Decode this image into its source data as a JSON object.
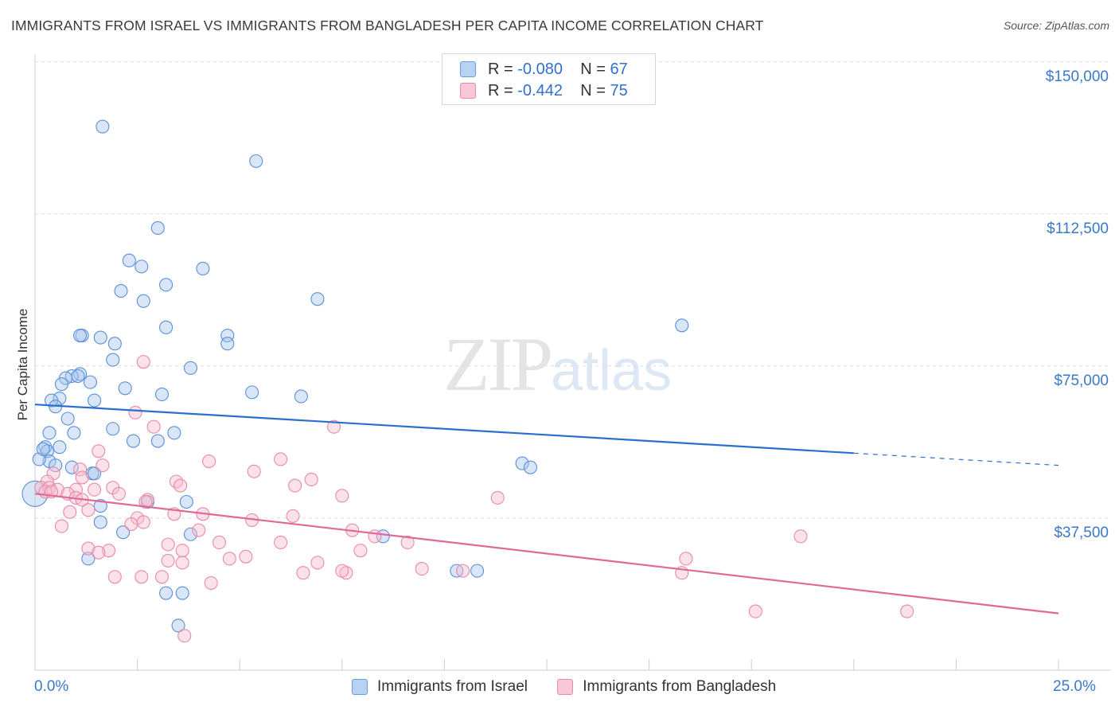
{
  "title": "IMMIGRANTS FROM ISRAEL VS IMMIGRANTS FROM BANGLADESH PER CAPITA INCOME CORRELATION CHART",
  "source": "Source: ZipAtlas.com",
  "watermark": {
    "zip": "ZIP",
    "atlas": "atlas"
  },
  "colors": {
    "israel_fill": "#a9c8f0",
    "israel_stroke": "#5b8fd6",
    "israel_line": "#2a6fce",
    "bangladesh_fill": "#f6bccf",
    "bangladesh_stroke": "#e88aa9",
    "bangladesh_line": "#e0699a",
    "tick_text": "#3a78c9"
  },
  "legend_top": [
    {
      "r_label": "R =",
      "r_value": "-0.080",
      "n_label": "N =",
      "n_value": "67"
    },
    {
      "r_label": "R =",
      "r_value": "-0.442",
      "n_label": "N =",
      "n_value": "75"
    }
  ],
  "chart_data": {
    "type": "scatter",
    "title": "IMMIGRANTS FROM ISRAEL VS IMMIGRANTS FROM BANGLADESH PER CAPITA INCOME CORRELATION CHART",
    "xlabel": "",
    "ylabel": "Per Capita Income",
    "xlim": [
      0,
      25
    ],
    "ylim": [
      0,
      155000
    ],
    "x_ticks": [
      "0.0%",
      "25.0%"
    ],
    "y_ticks": [
      {
        "value": 37500,
        "label": "$37,500"
      },
      {
        "value": 75000,
        "label": "$75,000"
      },
      {
        "value": 112500,
        "label": "$112,500"
      },
      {
        "value": 150000,
        "label": "$150,000"
      }
    ],
    "grid": true,
    "legend_position": "bottom",
    "series": [
      {
        "name": "Immigrants from Israel",
        "trend": {
          "x_start": 0,
          "y_start": 65500,
          "x_solid_end": 20,
          "y_solid_end": 53500,
          "x_end": 25,
          "y_end": 50500
        },
        "points": [
          [
            1.65,
            134000
          ],
          [
            5.4,
            125500
          ],
          [
            3.0,
            109000
          ],
          [
            2.3,
            101000
          ],
          [
            2.6,
            99500
          ],
          [
            4.1,
            99000
          ],
          [
            3.2,
            95000
          ],
          [
            2.1,
            93500
          ],
          [
            2.65,
            91000
          ],
          [
            6.9,
            91500
          ],
          [
            15.8,
            85000
          ],
          [
            3.2,
            84500
          ],
          [
            1.15,
            82500
          ],
          [
            1.1,
            82500
          ],
          [
            1.6,
            82000
          ],
          [
            4.7,
            82500
          ],
          [
            1.95,
            80500
          ],
          [
            4.7,
            80500
          ],
          [
            1.9,
            76500
          ],
          [
            3.8,
            74500
          ],
          [
            1.1,
            73000
          ],
          [
            0.9,
            72500
          ],
          [
            0.75,
            72000
          ],
          [
            1.05,
            72500
          ],
          [
            1.35,
            71000
          ],
          [
            0.65,
            70500
          ],
          [
            2.2,
            69500
          ],
          [
            5.3,
            68500
          ],
          [
            3.1,
            68000
          ],
          [
            6.5,
            67500
          ],
          [
            0.6,
            67000
          ],
          [
            0.4,
            66500
          ],
          [
            1.45,
            66500
          ],
          [
            0.5,
            65000
          ],
          [
            0.8,
            62000
          ],
          [
            1.9,
            59500
          ],
          [
            3.4,
            58500
          ],
          [
            0.95,
            58500
          ],
          [
            0.35,
            58500
          ],
          [
            2.4,
            56500
          ],
          [
            3.0,
            56500
          ],
          [
            0.25,
            55000
          ],
          [
            0.6,
            55000
          ],
          [
            0.3,
            54000
          ],
          [
            0.35,
            51500
          ],
          [
            11.9,
            51000
          ],
          [
            12.1,
            50000
          ],
          [
            0.9,
            50000
          ],
          [
            0.5,
            50500
          ],
          [
            1.4,
            48500
          ],
          [
            1.45,
            48500
          ],
          [
            2.75,
            41500
          ],
          [
            3.7,
            41500
          ],
          [
            1.6,
            40500
          ],
          [
            1.6,
            36500
          ],
          [
            0.0,
            43500
          ],
          [
            2.15,
            34000
          ],
          [
            3.8,
            33500
          ],
          [
            8.5,
            33000
          ],
          [
            1.3,
            27500
          ],
          [
            10.3,
            24500
          ],
          [
            10.8,
            24500
          ],
          [
            3.2,
            19000
          ],
          [
            3.6,
            19000
          ],
          [
            3.5,
            11000
          ],
          [
            0.1,
            52000
          ],
          [
            0.2,
            54500
          ]
        ]
      },
      {
        "name": "Immigrants from Bangladesh",
        "trend": {
          "x_start": 0,
          "y_start": 43500,
          "x_end": 25,
          "y_end": 14000
        },
        "points": [
          [
            2.65,
            76000
          ],
          [
            2.45,
            63500
          ],
          [
            7.3,
            60000
          ],
          [
            2.9,
            60000
          ],
          [
            1.55,
            54000
          ],
          [
            6.0,
            52000
          ],
          [
            4.25,
            51500
          ],
          [
            1.65,
            50500
          ],
          [
            1.1,
            49500
          ],
          [
            5.35,
            49000
          ],
          [
            0.45,
            48500
          ],
          [
            1.15,
            47500
          ],
          [
            6.75,
            47000
          ],
          [
            3.45,
            46500
          ],
          [
            0.3,
            46500
          ],
          [
            3.55,
            45500
          ],
          [
            6.35,
            45500
          ],
          [
            0.15,
            45000
          ],
          [
            1.9,
            45000
          ],
          [
            0.35,
            45000
          ],
          [
            0.55,
            44500
          ],
          [
            1.0,
            44500
          ],
          [
            1.45,
            44500
          ],
          [
            0.25,
            44000
          ],
          [
            0.4,
            44000
          ],
          [
            0.8,
            43500
          ],
          [
            2.05,
            43500
          ],
          [
            1.0,
            42500
          ],
          [
            7.5,
            43000
          ],
          [
            11.3,
            42500
          ],
          [
            1.15,
            42000
          ],
          [
            2.75,
            42000
          ],
          [
            2.7,
            41500
          ],
          [
            1.3,
            39500
          ],
          [
            0.85,
            39000
          ],
          [
            4.1,
            38500
          ],
          [
            2.5,
            37500
          ],
          [
            3.4,
            38500
          ],
          [
            6.3,
            38000
          ],
          [
            5.3,
            37000
          ],
          [
            2.65,
            36500
          ],
          [
            2.35,
            36000
          ],
          [
            0.65,
            35500
          ],
          [
            4.0,
            34500
          ],
          [
            7.75,
            34500
          ],
          [
            8.3,
            33000
          ],
          [
            1.3,
            30000
          ],
          [
            3.25,
            31000
          ],
          [
            4.5,
            31500
          ],
          [
            6.0,
            31500
          ],
          [
            9.1,
            31500
          ],
          [
            3.6,
            29500
          ],
          [
            1.8,
            29500
          ],
          [
            1.55,
            29000
          ],
          [
            7.95,
            29500
          ],
          [
            5.15,
            28000
          ],
          [
            4.75,
            27500
          ],
          [
            3.25,
            27000
          ],
          [
            3.6,
            26500
          ],
          [
            6.9,
            26500
          ],
          [
            9.45,
            25000
          ],
          [
            7.6,
            24000
          ],
          [
            7.5,
            24500
          ],
          [
            6.55,
            24000
          ],
          [
            1.95,
            23000
          ],
          [
            2.6,
            23000
          ],
          [
            3.1,
            23000
          ],
          [
            4.3,
            21500
          ],
          [
            10.45,
            24500
          ],
          [
            15.9,
            27500
          ],
          [
            15.8,
            24000
          ],
          [
            18.7,
            33000
          ],
          [
            17.6,
            14500
          ],
          [
            21.3,
            14500
          ],
          [
            3.65,
            8500
          ]
        ]
      }
    ]
  }
}
